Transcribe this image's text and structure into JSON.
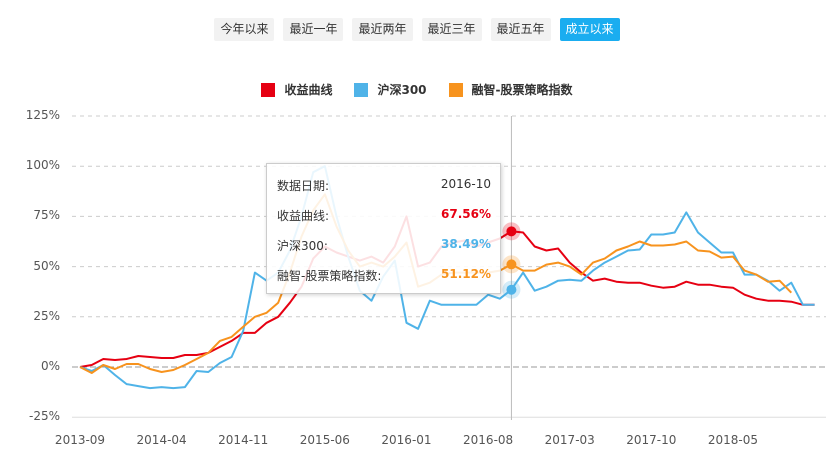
{
  "range_buttons": [
    {
      "label": "今年以来",
      "active": false
    },
    {
      "label": "最近一年",
      "active": false
    },
    {
      "label": "最近两年",
      "active": false
    },
    {
      "label": "最近三年",
      "active": false
    },
    {
      "label": "最近五年",
      "active": false
    },
    {
      "label": "成立以来",
      "active": true
    }
  ],
  "legend": [
    {
      "label": "收益曲线",
      "color": "#e60012"
    },
    {
      "label": "沪深300",
      "color": "#4fb3e8"
    },
    {
      "label": "融智-股票策略指数",
      "color": "#f7931e"
    }
  ],
  "tooltip": {
    "date_label": "数据日期:",
    "date_value": "2016-10",
    "rows": [
      {
        "label": "收益曲线:",
        "value": "67.56%",
        "color": "#e60012"
      },
      {
        "label": "沪深300:",
        "value": "38.49%",
        "color": "#4fb3e8"
      },
      {
        "label": "融智-股票策略指数:",
        "value": "51.12%",
        "color": "#f7931e"
      }
    ]
  },
  "chart_data": {
    "type": "line",
    "title": "",
    "xlabel": "",
    "ylabel": "",
    "ylim": [
      -25,
      125
    ],
    "yticks": [
      "125%",
      "100%",
      "75%",
      "50%",
      "25%",
      "0%",
      "-25%"
    ],
    "xticks": [
      "2013-09",
      "2014-04",
      "2014-11",
      "2015-06",
      "2016-01",
      "2016-08",
      "2017-03",
      "2017-10",
      "2018-05"
    ],
    "grid": true,
    "legend_position": "top",
    "x_start": "2013-09",
    "x_end": "2018-12",
    "x": [
      "2013-09",
      "2013-10",
      "2013-11",
      "2013-12",
      "2014-01",
      "2014-02",
      "2014-03",
      "2014-04",
      "2014-05",
      "2014-06",
      "2014-07",
      "2014-08",
      "2014-09",
      "2014-10",
      "2014-11",
      "2014-12",
      "2015-01",
      "2015-02",
      "2015-03",
      "2015-04",
      "2015-05",
      "2015-06",
      "2015-07",
      "2015-08",
      "2015-09",
      "2015-10",
      "2015-11",
      "2015-12",
      "2016-01",
      "2016-02",
      "2016-03",
      "2016-04",
      "2016-05",
      "2016-06",
      "2016-07",
      "2016-08",
      "2016-09",
      "2016-10",
      "2016-11",
      "2016-12",
      "2017-01",
      "2017-02",
      "2017-03",
      "2017-04",
      "2017-05",
      "2017-06",
      "2017-07",
      "2017-08",
      "2017-09",
      "2017-10",
      "2017-11",
      "2017-12",
      "2018-01",
      "2018-02",
      "2018-03",
      "2018-04",
      "2018-05",
      "2018-06",
      "2018-07",
      "2018-08",
      "2018-09",
      "2018-10",
      "2018-11",
      "2018-12"
    ],
    "series": [
      {
        "name": "收益曲线",
        "color": "#e60012",
        "values": [
          0,
          1,
          4,
          3.5,
          4,
          5.5,
          5,
          4.5,
          4.5,
          6,
          6,
          7,
          10,
          13,
          17,
          17,
          22,
          25,
          32,
          40,
          54,
          60,
          57,
          55,
          53,
          55,
          52,
          60,
          75,
          50,
          52,
          60,
          62,
          63,
          60,
          62,
          64,
          67.56,
          67,
          60,
          58,
          59,
          52,
          47,
          43,
          44,
          42.5,
          42,
          42,
          40.5,
          39.5,
          40,
          42.5,
          41,
          41,
          40,
          39.5,
          36,
          34,
          33,
          33,
          32.5,
          31,
          31
        ]
      },
      {
        "name": "沪深300",
        "color": "#4fb3e8",
        "values": [
          0,
          -2,
          1,
          -4,
          -8.5,
          -9.5,
          -10.5,
          -10,
          -10.5,
          -10,
          -2,
          -2.5,
          2,
          5,
          18,
          47,
          43,
          47,
          58,
          75,
          97,
          100,
          75,
          55,
          38,
          33,
          45,
          53,
          22,
          19,
          33,
          31,
          31,
          31,
          31,
          36,
          34,
          38.49,
          47,
          38,
          40,
          43,
          43.5,
          43,
          48,
          52,
          55,
          58,
          58.5,
          66,
          66,
          67,
          77,
          67,
          62,
          57,
          57,
          46,
          46,
          43,
          38,
          42,
          31,
          31
        ]
      },
      {
        "name": "融智-股票策略指数",
        "color": "#f7931e",
        "values": [
          0,
          -3,
          1,
          -1,
          1.5,
          1.5,
          -1,
          -2.5,
          -1.5,
          1,
          4,
          7,
          13,
          15,
          20,
          25,
          27,
          32,
          47,
          65,
          78,
          86,
          70,
          58,
          50,
          52,
          50,
          55,
          62,
          40,
          42,
          46,
          47,
          47,
          47,
          47,
          48,
          51.12,
          48,
          48,
          51,
          52,
          50,
          46,
          52,
          54,
          58,
          60,
          62.5,
          60.5,
          60.5,
          61,
          62.5,
          58,
          57.5,
          54.5,
          55,
          48,
          46,
          42.5,
          43,
          37,
          null,
          null
        ]
      }
    ]
  }
}
